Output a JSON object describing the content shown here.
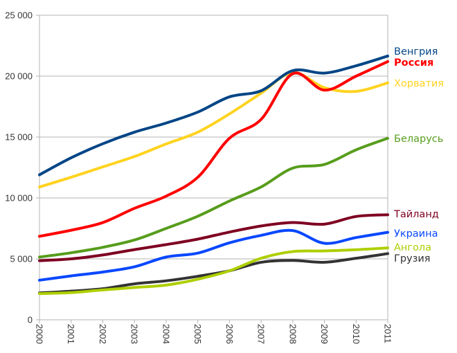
{
  "chart_data": {
    "type": "line",
    "title": "",
    "xlabel": "",
    "ylabel": "",
    "x": [
      "2000",
      "2001",
      "2002",
      "2003",
      "2004",
      "2005",
      "2006",
      "2007",
      "2008",
      "2009",
      "2010",
      "2011"
    ],
    "ylim": [
      0,
      25000
    ],
    "yticks": [
      0,
      5000,
      10000,
      15000,
      20000,
      25000
    ],
    "ytick_labels": [
      "0",
      "5 000",
      "10 000",
      "15 000",
      "20 000",
      "25 000"
    ],
    "grid": true,
    "smooth": true,
    "legend_placement": "right (labels at line ends)",
    "series": [
      {
        "name": "Венгрия",
        "color": "#004586",
        "bold": false,
        "values": [
          11900,
          13300,
          14450,
          15400,
          16150,
          17050,
          18300,
          18800,
          20450,
          20250,
          20850,
          21650
        ]
      },
      {
        "name": "Россия",
        "color": "#ff0000",
        "bold": true,
        "values": [
          6850,
          7350,
          7980,
          9150,
          10150,
          11700,
          14900,
          16450,
          20200,
          18850,
          20000,
          21200
        ]
      },
      {
        "name": "Хорватия",
        "color": "#ffd320",
        "bold": false,
        "values": [
          10900,
          11700,
          12550,
          13400,
          14430,
          15400,
          16900,
          18600,
          20300,
          19050,
          18750,
          19450
        ]
      },
      {
        "name": "Беларусь",
        "color": "#579d1c",
        "bold": false,
        "values": [
          5150,
          5500,
          5950,
          6550,
          7500,
          8500,
          9750,
          10900,
          12450,
          12750,
          13950,
          14900
        ]
      },
      {
        "name": "Тайланд",
        "color": "#7e0021",
        "bold": false,
        "values": [
          4850,
          5000,
          5320,
          5760,
          6170,
          6620,
          7200,
          7700,
          7980,
          7850,
          8480,
          8620
        ]
      },
      {
        "name": "Украина",
        "color": "#0747ff",
        "bold": false,
        "values": [
          3250,
          3600,
          3920,
          4350,
          5150,
          5470,
          6320,
          6930,
          7320,
          6280,
          6750,
          7180
        ]
      },
      {
        "name": "Ангола",
        "color": "#aecf00",
        "bold": false,
        "values": [
          2150,
          2230,
          2450,
          2650,
          2850,
          3330,
          4020,
          5050,
          5600,
          5650,
          5750,
          5900
        ]
      },
      {
        "name": "Грузия",
        "color": "#333333",
        "bold": false,
        "values": [
          2200,
          2350,
          2550,
          2950,
          3200,
          3570,
          4020,
          4720,
          4870,
          4720,
          5050,
          5430
        ]
      }
    ]
  }
}
